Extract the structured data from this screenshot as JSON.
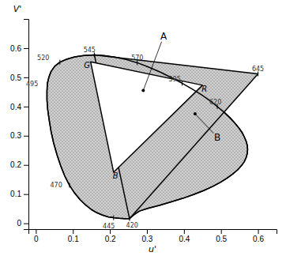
{
  "chart_data": {
    "type": "chromaticity",
    "xlabel": "u'",
    "ylabel": "V'",
    "xlim": [
      -0.02,
      0.65
    ],
    "ylim": [
      -0.02,
      0.7
    ],
    "xticks": [
      0,
      0.1,
      0.2,
      0.3,
      0.4,
      0.5,
      0.6
    ],
    "yticks": [
      0,
      0.1,
      0.2,
      0.3,
      0.4,
      0.5,
      0.6
    ],
    "series": [
      {
        "type": "area",
        "marker": "dot",
        "color": "#d0d0d0",
        "x": [
          0.253,
          0.24,
          0.225,
          0.21,
          0.195,
          0.18,
          0.165,
          0.15,
          0.135,
          0.12,
          0.105,
          0.091,
          0.078,
          0.067,
          0.057,
          0.048,
          0.041,
          0.036,
          0.032,
          0.03,
          0.03,
          0.031,
          0.035,
          0.041,
          0.051,
          0.065,
          0.083,
          0.105,
          0.13,
          0.158,
          0.186,
          0.215,
          0.244,
          0.274,
          0.305,
          0.336,
          0.366,
          0.395,
          0.422,
          0.448,
          0.47,
          0.49,
          0.508,
          0.524,
          0.537,
          0.548,
          0.557,
          0.563,
          0.568,
          0.571,
          0.572,
          0.571,
          0.568,
          0.563,
          0.555,
          0.545,
          0.532,
          0.516,
          0.498,
          0.477,
          0.453,
          0.427,
          0.398,
          0.367,
          0.335,
          0.302,
          0.28,
          0.27,
          0.262,
          0.257,
          0.253
        ],
        "values": [
          0.016,
          0.016,
          0.017,
          0.019,
          0.022,
          0.028,
          0.036,
          0.047,
          0.062,
          0.08,
          0.103,
          0.13,
          0.162,
          0.197,
          0.235,
          0.275,
          0.315,
          0.354,
          0.39,
          0.423,
          0.452,
          0.477,
          0.5,
          0.52,
          0.538,
          0.552,
          0.562,
          0.57,
          0.575,
          0.577,
          0.574,
          0.569,
          0.561,
          0.55,
          0.535,
          0.518,
          0.499,
          0.48,
          0.46,
          0.44,
          0.42,
          0.4,
          0.381,
          0.362,
          0.344,
          0.327,
          0.311,
          0.296,
          0.281,
          0.267,
          0.253,
          0.239,
          0.225,
          0.211,
          0.197,
          0.183,
          0.169,
          0.154,
          0.14,
          0.126,
          0.112,
          0.099,
          0.086,
          0.074,
          0.062,
          0.051,
          0.042,
          0.034,
          0.026,
          0.021,
          0.016
        ]
      },
      {
        "type": "area",
        "marker": "dot",
        "color": "#d0d0d0",
        "x": [
          0.158,
          0.6,
          0.253
        ],
        "values": [
          0.577,
          0.512,
          0.016
        ]
      },
      {
        "type": "area",
        "color": "white",
        "x": [
          0.148,
          0.45,
          0.21
        ],
        "values": [
          0.553,
          0.473,
          0.175
        ]
      }
    ],
    "wavelength_labels": [
      {
        "text": "420",
        "x": 0.253,
        "y": 0.016,
        "text_x": 0.26,
        "text_y": -0.008
      },
      {
        "text": "445",
        "x": 0.21,
        "y": 0.019,
        "text_x": 0.197,
        "text_y": -0.01
      },
      {
        "text": "470",
        "x": 0.091,
        "y": 0.13,
        "text_x": 0.055,
        "text_y": 0.13
      },
      {
        "text": "495",
        "x": 0.031,
        "y": 0.477,
        "text_x": -0.01,
        "text_y": 0.477
      },
      {
        "text": "520",
        "x": 0.065,
        "y": 0.552,
        "text_x": 0.02,
        "text_y": 0.565
      },
      {
        "text": "545",
        "x": 0.158,
        "y": 0.577,
        "text_x": 0.145,
        "text_y": 0.592
      },
      {
        "text": "570",
        "x": 0.274,
        "y": 0.55,
        "text_x": 0.274,
        "text_y": 0.565
      },
      {
        "text": "595",
        "x": 0.395,
        "y": 0.48,
        "text_x": 0.375,
        "text_y": 0.494
      },
      {
        "text": "620",
        "x": 0.49,
        "y": 0.4,
        "text_x": 0.485,
        "text_y": 0.415
      },
      {
        "text": "645",
        "x": 0.6,
        "y": 0.512,
        "text_x": 0.6,
        "text_y": 0.527
      }
    ],
    "vertex_labels": [
      {
        "text": "G",
        "x": 0.138,
        "y": 0.543
      },
      {
        "text": "R",
        "x": 0.455,
        "y": 0.46
      },
      {
        "text": "B",
        "x": 0.215,
        "y": 0.163
      }
    ],
    "annotations": [
      {
        "text": "A",
        "x": 0.29,
        "y": 0.455,
        "text_x": 0.345,
        "text_y": 0.64
      },
      {
        "text": "B",
        "x": 0.43,
        "y": 0.375,
        "text_x": 0.49,
        "text_y": 0.295
      }
    ]
  }
}
